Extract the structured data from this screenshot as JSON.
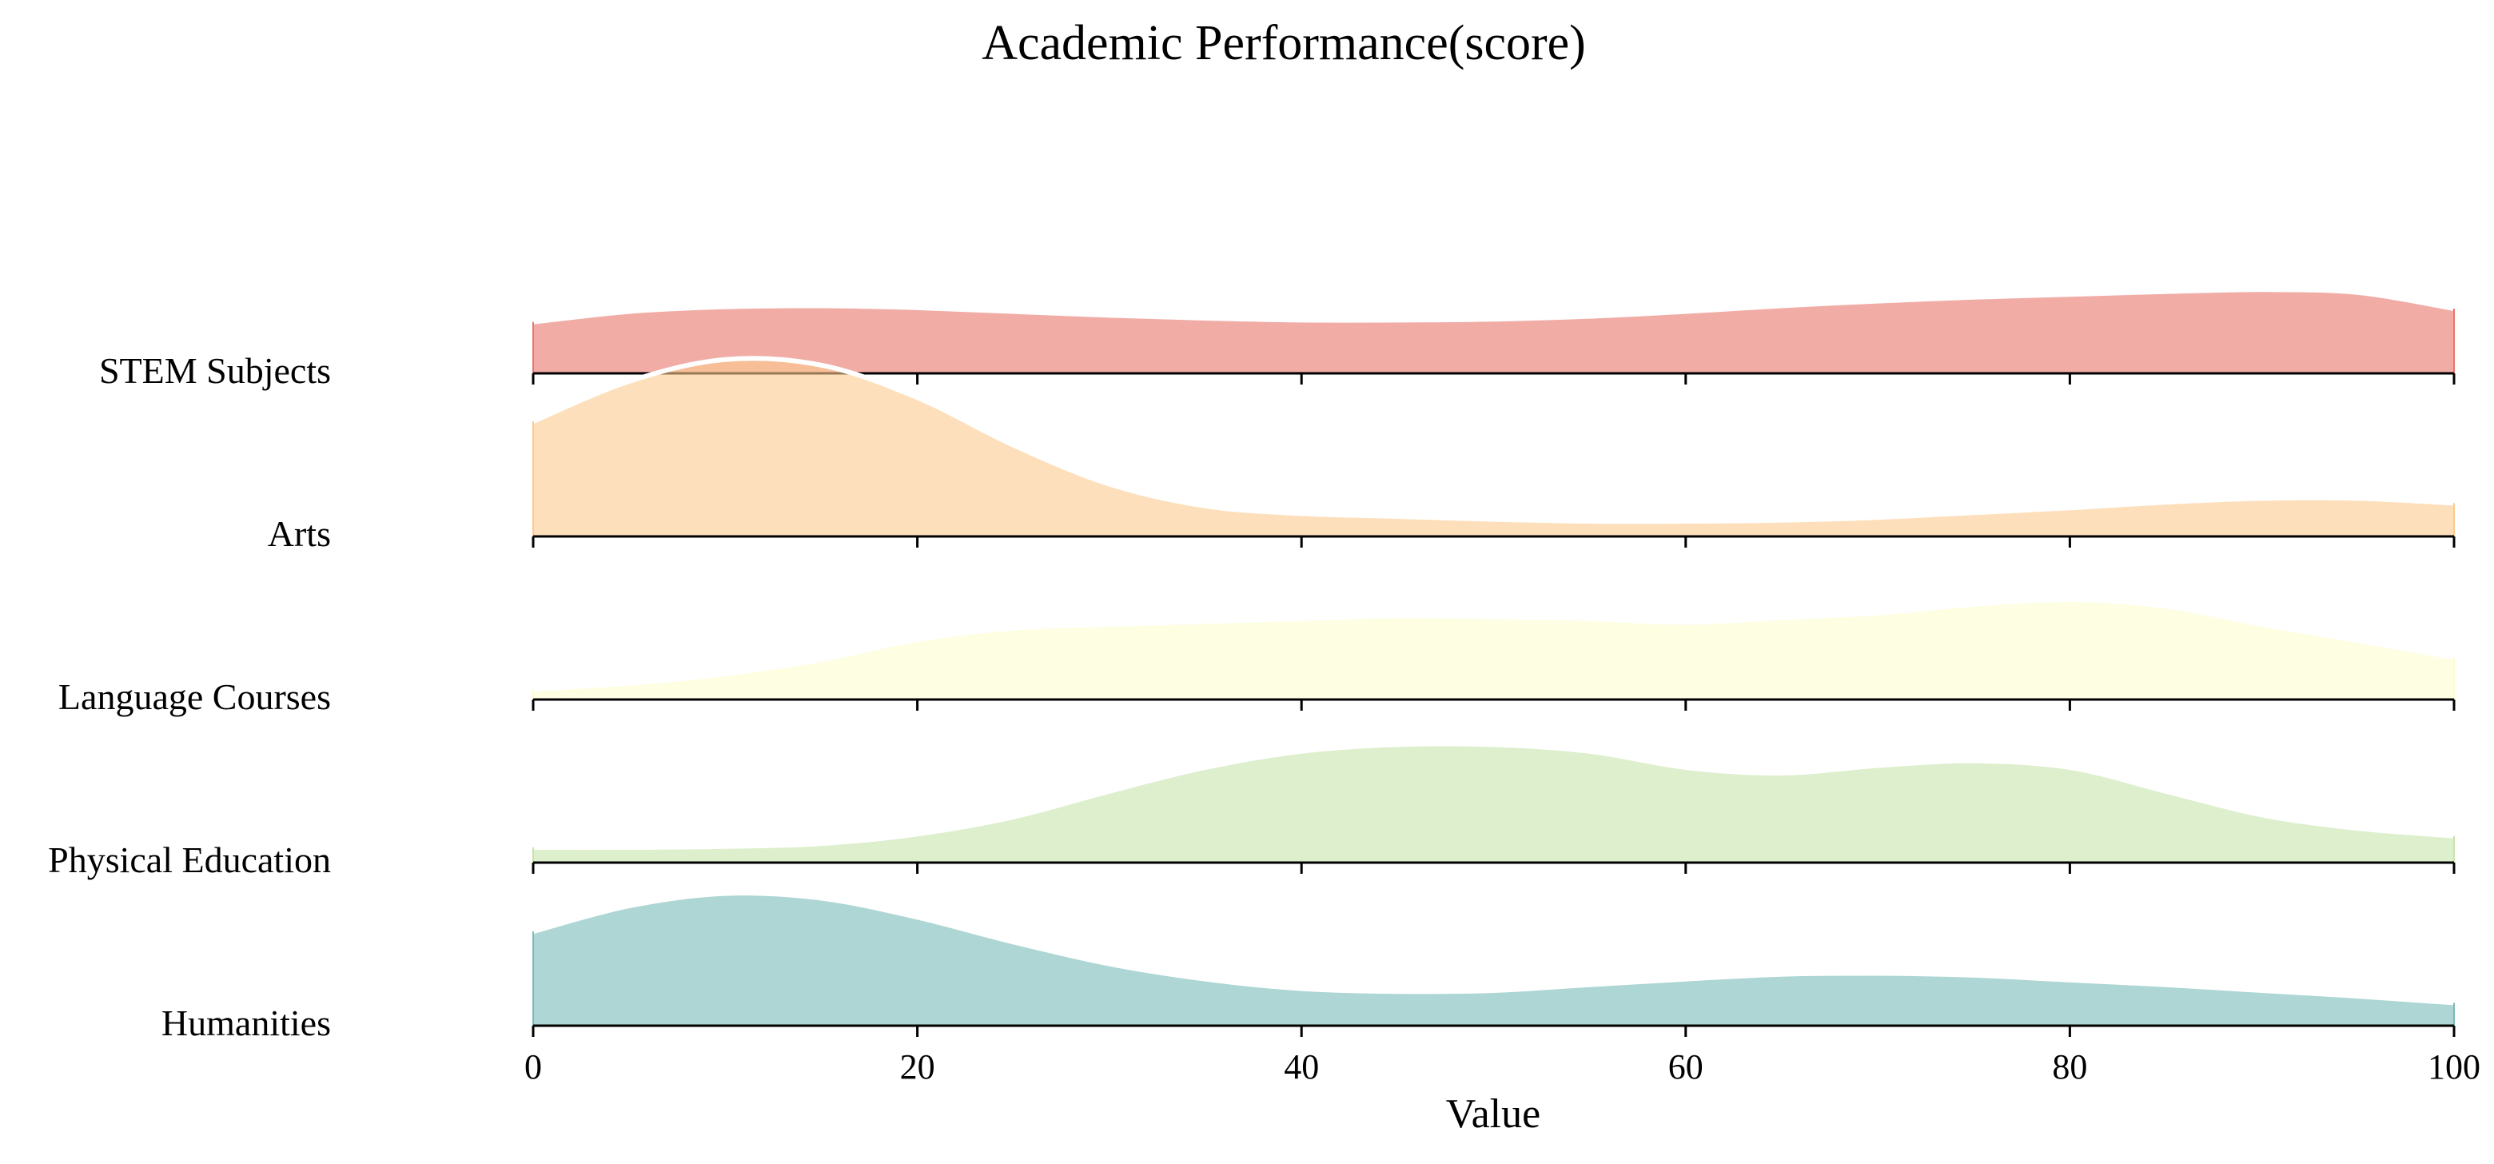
{
  "chart_data": {
    "type": "area",
    "title": "Academic Performance(score)",
    "xlabel": "Value",
    "ylabel": "",
    "xlim": [
      0,
      100
    ],
    "x_ticks": [
      "0",
      "20",
      "40",
      "60",
      "80",
      "100"
    ],
    "grid": false,
    "legend": "none",
    "x": [
      0,
      5,
      10,
      15,
      20,
      25,
      30,
      35,
      40,
      45,
      50,
      55,
      60,
      65,
      70,
      75,
      80,
      85,
      90,
      95,
      100
    ],
    "series": [
      {
        "name": "STEM Subjects",
        "color": "#e8756a",
        "values": [
          0.54,
          0.65,
          0.7,
          0.71,
          0.69,
          0.65,
          0.61,
          0.58,
          0.56,
          0.56,
          0.57,
          0.6,
          0.65,
          0.71,
          0.76,
          0.8,
          0.83,
          0.86,
          0.88,
          0.85,
          0.68
        ]
      },
      {
        "name": "Arts",
        "color": "#fbc98e",
        "values": [
          1.21,
          1.63,
          1.86,
          1.8,
          1.46,
          0.96,
          0.55,
          0.32,
          0.24,
          0.21,
          0.18,
          0.16,
          0.16,
          0.17,
          0.2,
          0.25,
          0.3,
          0.36,
          0.4,
          0.4,
          0.35
        ]
      },
      {
        "name": "Language Courses",
        "color": "#fefdcf",
        "values": [
          0.11,
          0.17,
          0.27,
          0.42,
          0.63,
          0.75,
          0.79,
          0.82,
          0.85,
          0.88,
          0.87,
          0.85,
          0.81,
          0.86,
          0.91,
          1.0,
          1.05,
          0.98,
          0.79,
          0.62,
          0.44
        ]
      },
      {
        "name": "Physical Education",
        "color": "#c6e5ac",
        "values": [
          0.16,
          0.16,
          0.17,
          0.2,
          0.3,
          0.48,
          0.75,
          1.0,
          1.17,
          1.24,
          1.24,
          1.17,
          1.0,
          0.94,
          1.02,
          1.07,
          1.0,
          0.75,
          0.5,
          0.36,
          0.28
        ]
      },
      {
        "name": "Humanities",
        "color": "#77bbb8",
        "values": [
          0.99,
          1.26,
          1.39,
          1.34,
          1.14,
          0.88,
          0.65,
          0.49,
          0.39,
          0.36,
          0.37,
          0.43,
          0.49,
          0.54,
          0.55,
          0.53,
          0.48,
          0.43,
          0.37,
          0.31,
          0.24
        ]
      }
    ]
  }
}
